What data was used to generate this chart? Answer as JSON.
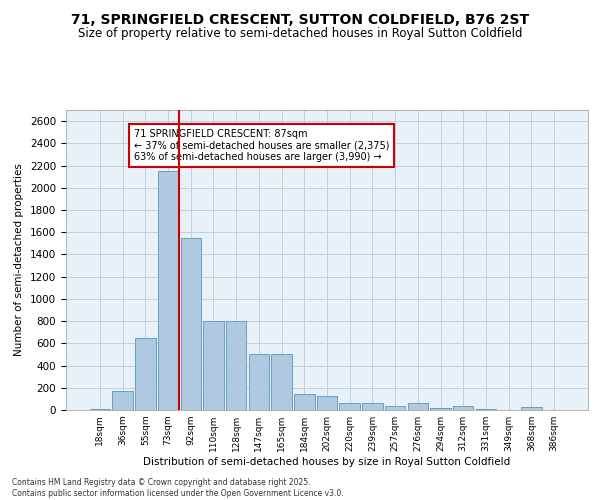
{
  "title": "71, SPRINGFIELD CRESCENT, SUTTON COLDFIELD, B76 2ST",
  "subtitle": "Size of property relative to semi-detached houses in Royal Sutton Coldfield",
  "xlabel": "Distribution of semi-detached houses by size in Royal Sutton Coldfield",
  "ylabel": "Number of semi-detached properties",
  "footnote": "Contains HM Land Registry data © Crown copyright and database right 2025.\nContains public sector information licensed under the Open Government Licence v3.0.",
  "bin_labels": [
    "18sqm",
    "36sqm",
    "55sqm",
    "73sqm",
    "92sqm",
    "110sqm",
    "128sqm",
    "147sqm",
    "165sqm",
    "184sqm",
    "202sqm",
    "220sqm",
    "239sqm",
    "257sqm",
    "276sqm",
    "294sqm",
    "312sqm",
    "331sqm",
    "349sqm",
    "368sqm",
    "386sqm"
  ],
  "bar_values": [
    5,
    175,
    650,
    2150,
    1550,
    800,
    800,
    500,
    500,
    140,
    125,
    60,
    65,
    40,
    60,
    20,
    35,
    5,
    0,
    30,
    0
  ],
  "bar_color": "#aec9e0",
  "bar_edge_color": "#6a9fc0",
  "vline_color": "#cc0000",
  "annotation_text": "71 SPRINGFIELD CRESCENT: 87sqm\n← 37% of semi-detached houses are smaller (2,375)\n63% of semi-detached houses are larger (3,990) →",
  "annotation_box_color": "#ffffff",
  "annotation_box_edge": "#cc0000",
  "ylim": [
    0,
    2700
  ],
  "yticks": [
    0,
    200,
    400,
    600,
    800,
    1000,
    1200,
    1400,
    1600,
    1800,
    2000,
    2200,
    2400,
    2600
  ],
  "background_color": "#ffffff",
  "plot_bg_color": "#e8f0f8",
  "grid_color": "#c0d0e0",
  "title_fontsize": 10,
  "subtitle_fontsize": 8.5
}
